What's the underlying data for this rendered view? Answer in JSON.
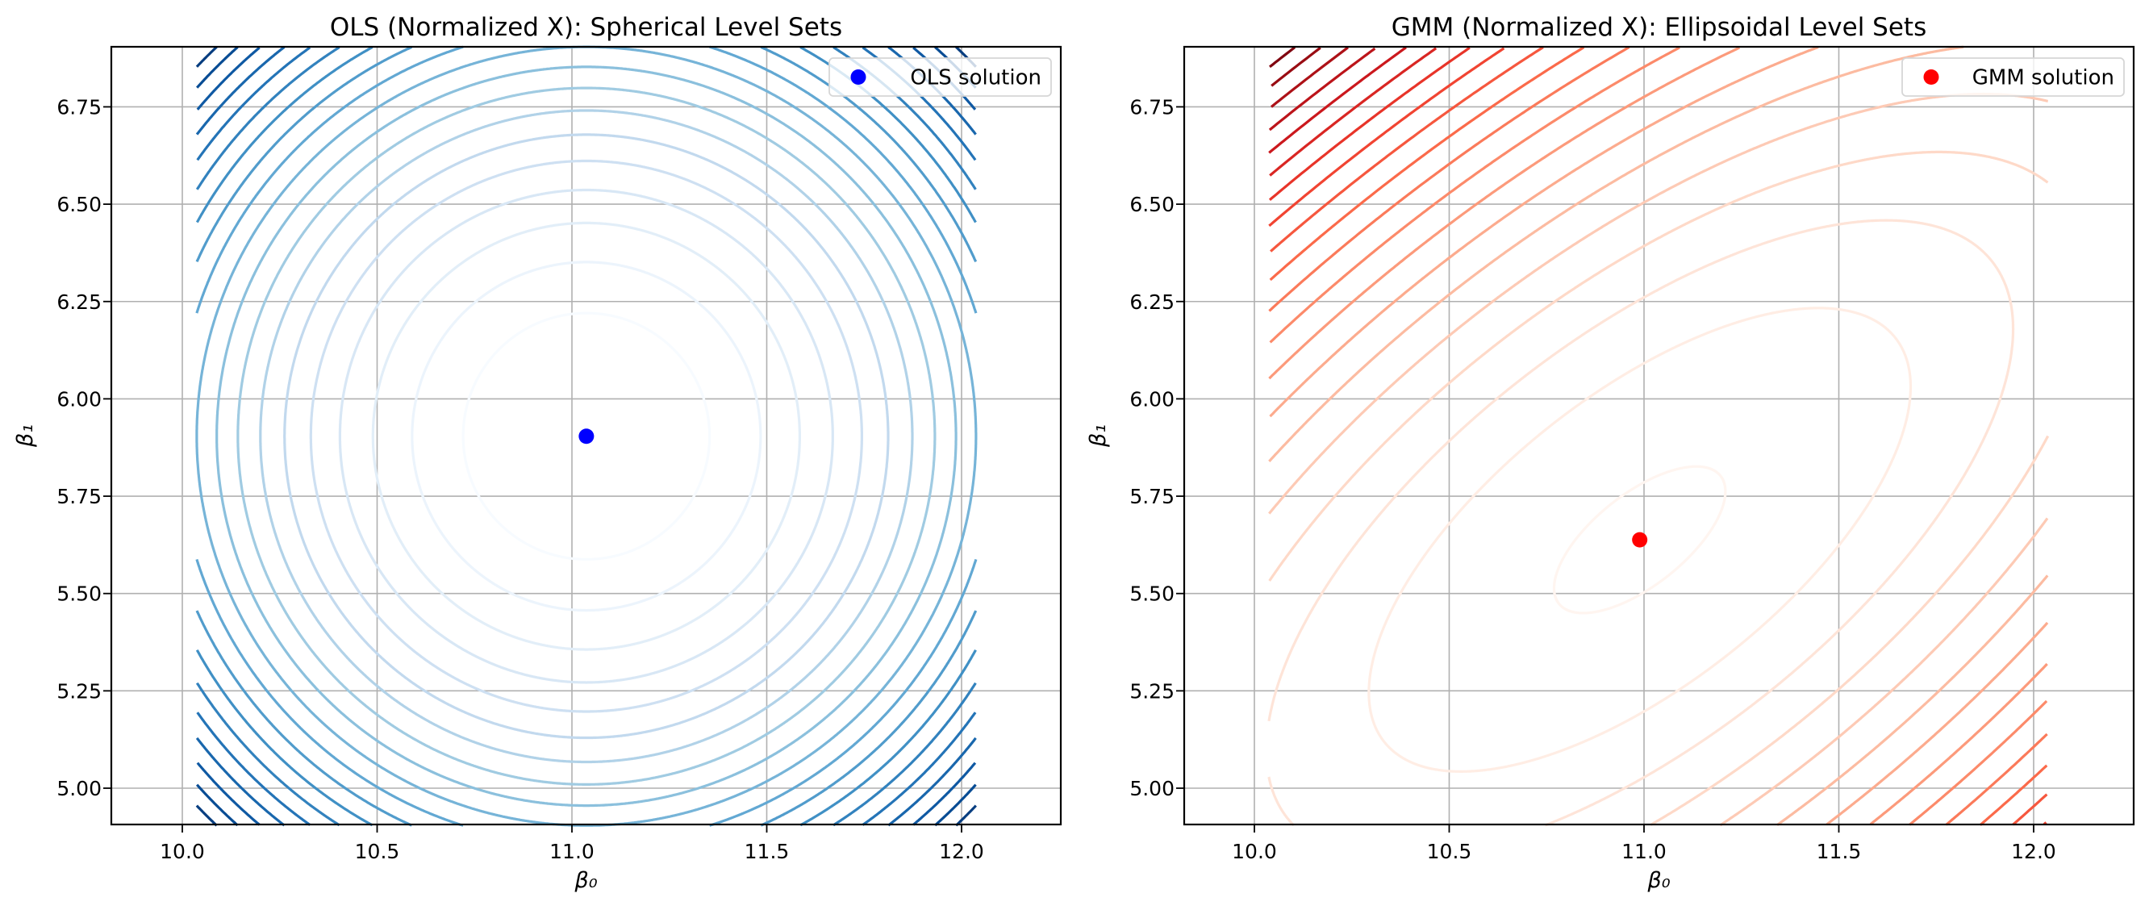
{
  "chart_data": [
    {
      "type": "contour",
      "title": "OLS (Normalized X): Spherical Level Sets",
      "xlabel": "β₀",
      "ylabel": "β₁",
      "xlim": [
        9.818,
        12.255
      ],
      "ylim": [
        4.907,
        6.904
      ],
      "xticks": [
        "10.0",
        "10.5",
        "11.0",
        "11.5",
        "12.0"
      ],
      "yticks": [
        "5.00",
        "5.25",
        "5.50",
        "5.75",
        "6.00",
        "6.25",
        "6.50",
        "6.75"
      ],
      "grid": true,
      "colormap": [
        "#f7fbff",
        "#deebf7",
        "#c6dbef",
        "#9ecae1",
        "#6baed6",
        "#4292c6",
        "#2171b5",
        "#08519c",
        "#08306b"
      ],
      "data_domain": {
        "x": [
          10.037,
          12.037
        ],
        "y": [
          4.904,
          6.904
        ]
      },
      "center": [
        11.037,
        5.904
      ],
      "quadratic_form": [
        [
          1,
          0
        ],
        [
          0,
          1
        ]
      ],
      "levels": [
        0.1,
        0.2,
        0.3,
        0.4,
        0.5,
        0.6,
        0.7,
        0.8,
        0.9,
        1.0,
        1.1,
        1.2,
        1.3,
        1.4,
        1.5,
        1.6,
        1.7,
        1.8,
        1.9,
        2.0
      ],
      "solution": {
        "x": 11.037,
        "y": 5.904,
        "label": "OLS solution",
        "color": "#0000ff"
      },
      "legend_position": "top-right"
    },
    {
      "type": "contour",
      "title": "GMM (Normalized X): Ellipsoidal Level Sets",
      "xlabel": "β₀",
      "ylabel": "β₁",
      "xlim": [
        9.818,
        12.255
      ],
      "ylim": [
        4.907,
        6.904
      ],
      "xticks": [
        "10.0",
        "10.5",
        "11.0",
        "11.5",
        "12.0"
      ],
      "yticks": [
        "5.00",
        "5.25",
        "5.50",
        "5.75",
        "6.00",
        "6.25",
        "6.50",
        "6.75"
      ],
      "grid": true,
      "colormap": [
        "#fff5f0",
        "#fee0d2",
        "#fcbba1",
        "#fc9272",
        "#fb6a4a",
        "#ef3b2c",
        "#cb181d",
        "#a50f15",
        "#67000d"
      ],
      "data_domain": {
        "x": [
          10.037,
          12.037
        ],
        "y": [
          4.904,
          6.904
        ]
      },
      "center": [
        10.989,
        5.638
      ],
      "quadratic_form": [
        [
          0.733,
          -0.565
        ],
        [
          -0.565,
          1.0
        ]
      ],
      "levels": [
        0.02,
        0.2,
        0.38,
        0.56,
        0.74,
        0.92,
        1.1,
        1.28,
        1.46,
        1.64,
        1.82,
        2.0,
        2.18,
        2.36,
        2.54,
        2.72,
        2.9,
        3.08,
        3.26,
        3.44,
        3.62
      ],
      "solution": {
        "x": 10.989,
        "y": 5.638,
        "label": "GMM solution",
        "color": "#ff0000"
      },
      "legend_position": "top-right"
    }
  ]
}
